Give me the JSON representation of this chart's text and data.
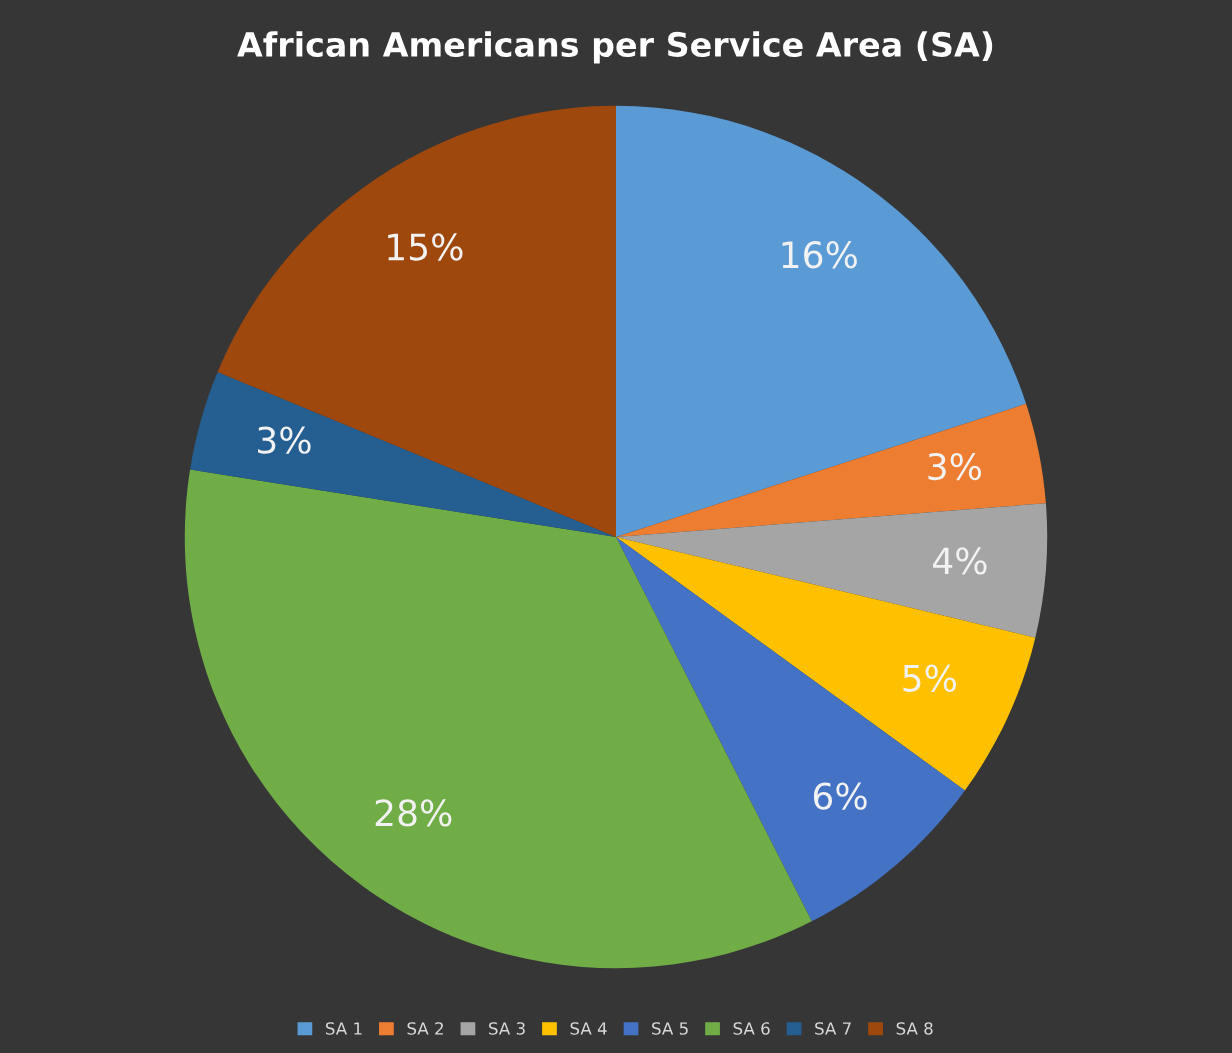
{
  "chart_data": {
    "type": "pie",
    "title": "African Americans per Service Area (SA)",
    "categories": [
      "SA 1",
      "SA 2",
      "SA 3",
      "SA 4",
      "SA 5",
      "SA 6",
      "SA 7",
      "SA 8"
    ],
    "values": [
      16,
      3,
      4,
      5,
      6,
      28,
      3,
      15
    ],
    "value_labels": [
      "16%",
      "3%",
      "4%",
      "5%",
      "6%",
      "28%",
      "3%",
      "15%"
    ],
    "colors": [
      "#5b9bd5",
      "#ed7d31",
      "#a5a5a5",
      "#ffc000",
      "#4472c4",
      "#70ad47",
      "#255e91",
      "#9e480e"
    ],
    "legend": "bottom"
  }
}
